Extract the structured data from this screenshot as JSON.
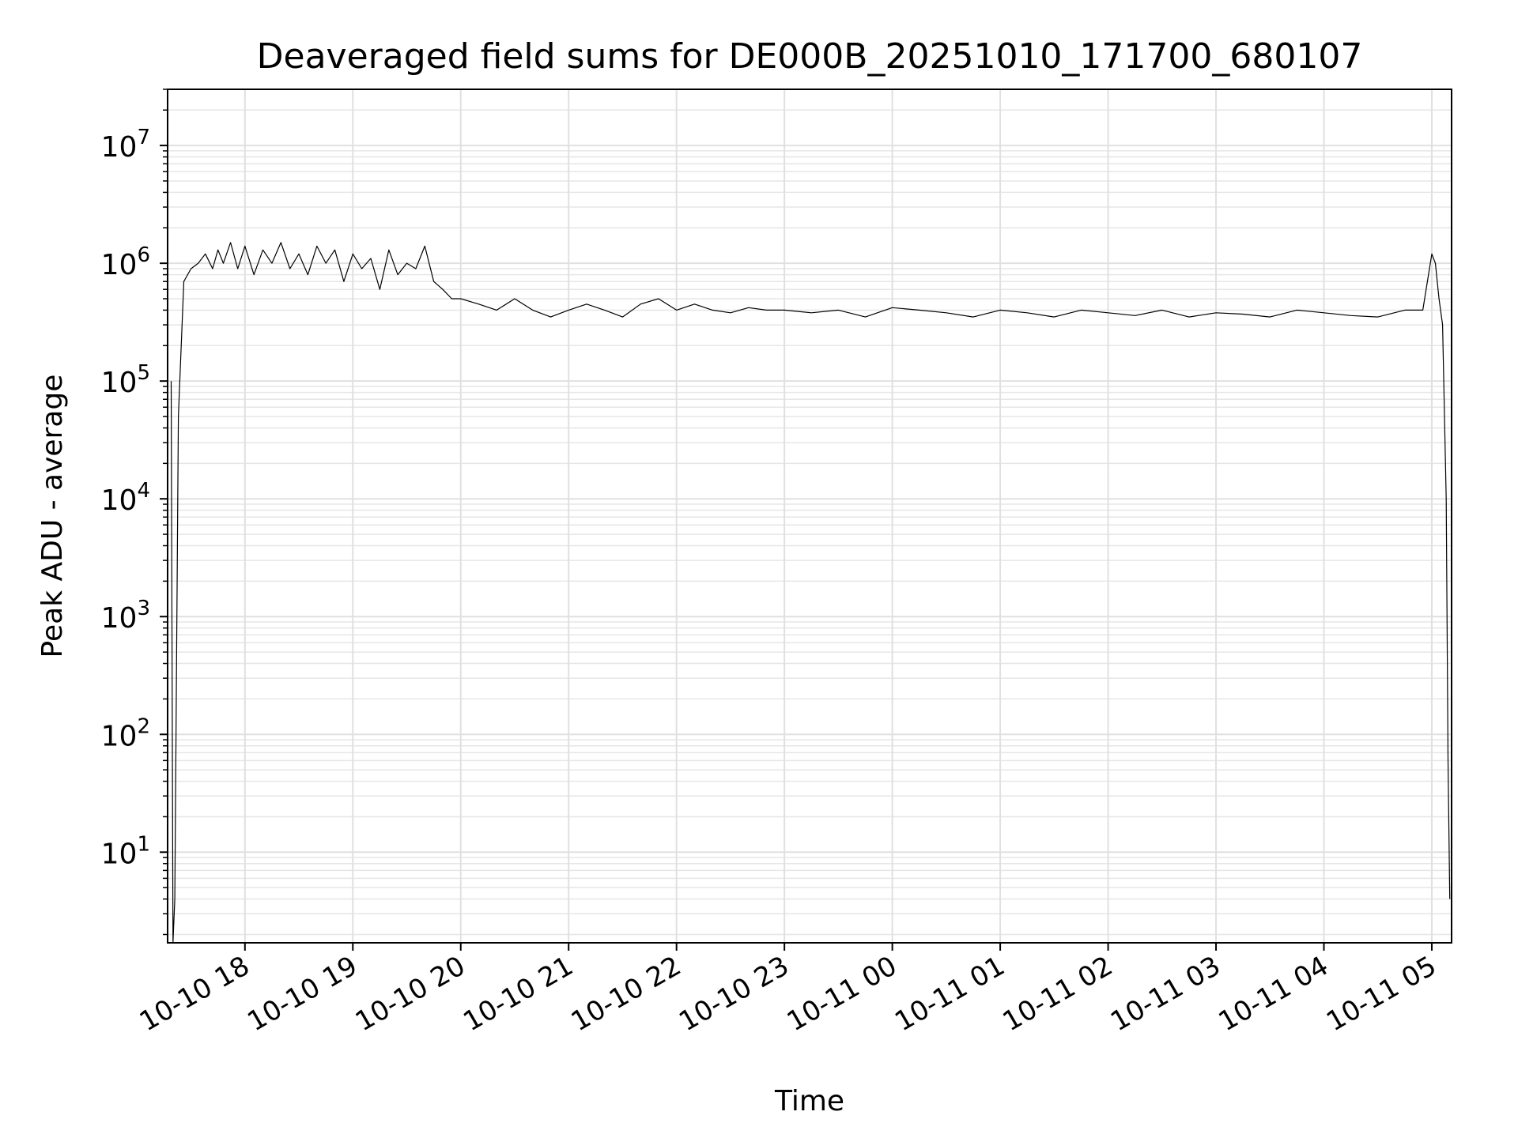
{
  "chart_data": {
    "type": "line",
    "title": "Deaveraged field sums for DE000B_20251010_171700_680107",
    "xlabel": "Time",
    "ylabel": "Peak ADU - average",
    "yscale": "log",
    "ylim": [
      1.7,
      30000000
    ],
    "xlim": [
      "2025-10-10T17:17:00",
      "2025-10-11T05:11:00"
    ],
    "grid": true,
    "line_color": "#000000",
    "x_ticks": [
      {
        "x": "2025-10-10T18:00",
        "label": "10-10 18"
      },
      {
        "x": "2025-10-10T19:00",
        "label": "10-10 19"
      },
      {
        "x": "2025-10-10T20:00",
        "label": "10-10 20"
      },
      {
        "x": "2025-10-10T21:00",
        "label": "10-10 21"
      },
      {
        "x": "2025-10-10T22:00",
        "label": "10-10 22"
      },
      {
        "x": "2025-10-10T23:00",
        "label": "10-10 23"
      },
      {
        "x": "2025-10-11T00:00",
        "label": "10-11 00"
      },
      {
        "x": "2025-10-11T01:00",
        "label": "10-11 01"
      },
      {
        "x": "2025-10-11T02:00",
        "label": "10-11 02"
      },
      {
        "x": "2025-10-11T03:00",
        "label": "10-11 03"
      },
      {
        "x": "2025-10-11T04:00",
        "label": "10-11 04"
      },
      {
        "x": "2025-10-11T05:00",
        "label": "10-11 05"
      }
    ],
    "y_ticks": [
      {
        "value": 10,
        "base": "10",
        "exp": "1"
      },
      {
        "value": 100,
        "base": "10",
        "exp": "2"
      },
      {
        "value": 1000,
        "base": "10",
        "exp": "3"
      },
      {
        "value": 10000,
        "base": "10",
        "exp": "4"
      },
      {
        "value": 100000,
        "base": "10",
        "exp": "5"
      },
      {
        "value": 1000000,
        "base": "10",
        "exp": "6"
      },
      {
        "value": 10000000,
        "base": "10",
        "exp": "7"
      }
    ],
    "series": [
      {
        "x": [
          "2025-10-10T17:19",
          "2025-10-10T17:20",
          "2025-10-10T17:21",
          "2025-10-10T17:23",
          "2025-10-10T17:26",
          "2025-10-10T17:30",
          "2025-10-10T17:34",
          "2025-10-10T17:38",
          "2025-10-10T17:42",
          "2025-10-10T17:45",
          "2025-10-10T17:48",
          "2025-10-10T17:52",
          "2025-10-10T17:56",
          "2025-10-10T18:00",
          "2025-10-10T18:05",
          "2025-10-10T18:10",
          "2025-10-10T18:15",
          "2025-10-10T18:20",
          "2025-10-10T18:25",
          "2025-10-10T18:30",
          "2025-10-10T18:35",
          "2025-10-10T18:40",
          "2025-10-10T18:45",
          "2025-10-10T18:50",
          "2025-10-10T18:55",
          "2025-10-10T19:00",
          "2025-10-10T19:05",
          "2025-10-10T19:10",
          "2025-10-10T19:15",
          "2025-10-10T19:20",
          "2025-10-10T19:25",
          "2025-10-10T19:30",
          "2025-10-10T19:35",
          "2025-10-10T19:40",
          "2025-10-10T19:45",
          "2025-10-10T19:50",
          "2025-10-10T19:55",
          "2025-10-10T20:00",
          "2025-10-10T20:10",
          "2025-10-10T20:20",
          "2025-10-10T20:30",
          "2025-10-10T20:40",
          "2025-10-10T20:50",
          "2025-10-10T21:00",
          "2025-10-10T21:10",
          "2025-10-10T21:20",
          "2025-10-10T21:30",
          "2025-10-10T21:40",
          "2025-10-10T21:50",
          "2025-10-10T22:00",
          "2025-10-10T22:10",
          "2025-10-10T22:20",
          "2025-10-10T22:30",
          "2025-10-10T22:40",
          "2025-10-10T22:50",
          "2025-10-10T23:00",
          "2025-10-10T23:15",
          "2025-10-10T23:30",
          "2025-10-10T23:45",
          "2025-10-11T00:00",
          "2025-10-11T00:15",
          "2025-10-11T00:30",
          "2025-10-11T00:45",
          "2025-10-11T01:00",
          "2025-10-11T01:15",
          "2025-10-11T01:30",
          "2025-10-11T01:45",
          "2025-10-11T02:00",
          "2025-10-11T02:15",
          "2025-10-11T02:30",
          "2025-10-11T02:45",
          "2025-10-11T03:00",
          "2025-10-11T03:15",
          "2025-10-11T03:30",
          "2025-10-11T03:45",
          "2025-10-11T04:00",
          "2025-10-11T04:15",
          "2025-10-11T04:30",
          "2025-10-11T04:45",
          "2025-10-11T04:55",
          "2025-10-11T05:00",
          "2025-10-11T05:02",
          "2025-10-11T05:04",
          "2025-10-11T05:06",
          "2025-10-11T05:08",
          "2025-10-11T05:09",
          "2025-10-11T05:10"
        ],
        "y": [
          100000,
          1.7,
          4,
          50000,
          700000,
          900000,
          1000000,
          1200000,
          900000,
          1300000,
          1000000,
          1500000,
          900000,
          1400000,
          800000,
          1300000,
          1000000,
          1500000,
          900000,
          1200000,
          800000,
          1400000,
          1000000,
          1300000,
          700000,
          1200000,
          900000,
          1100000,
          600000,
          1300000,
          800000,
          1000000,
          900000,
          1400000,
          700000,
          600000,
          500000,
          500000,
          450000,
          400000,
          500000,
          400000,
          350000,
          400000,
          450000,
          400000,
          350000,
          450000,
          500000,
          400000,
          450000,
          400000,
          380000,
          420000,
          400000,
          400000,
          380000,
          400000,
          350000,
          420000,
          400000,
          380000,
          350000,
          400000,
          380000,
          350000,
          400000,
          380000,
          360000,
          400000,
          350000,
          380000,
          370000,
          350000,
          400000,
          380000,
          360000,
          350000,
          400000,
          400000,
          1200000,
          1000000,
          500000,
          300000,
          10000,
          60,
          4
        ]
      }
    ]
  }
}
